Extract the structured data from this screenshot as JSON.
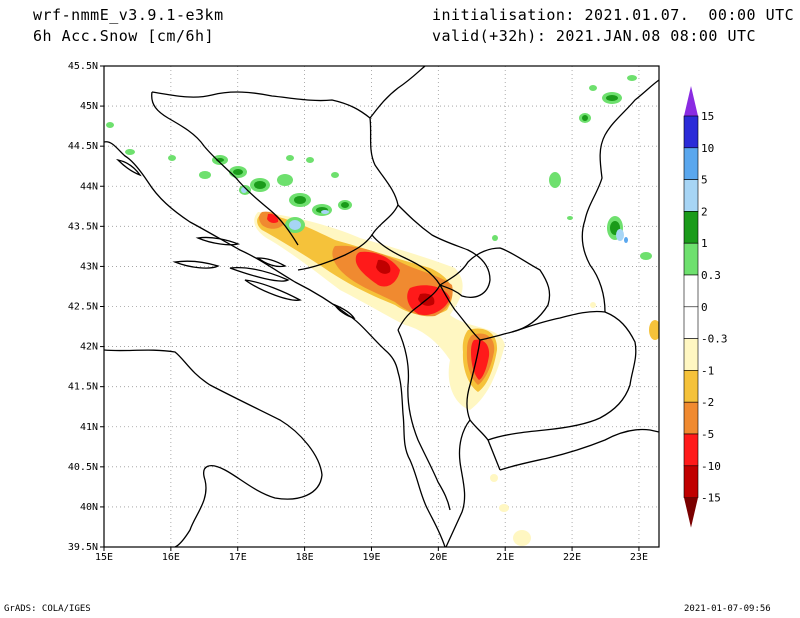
{
  "header": {
    "model": "wrf-nmmE_v3.9.1-e3km",
    "field": "6h Acc.Snow [cm/6h]",
    "initialisation": "initialisation: 2021.01.07.  00:00 UTC",
    "valid": "valid(+32h): 2021.JAN.08 08:00 UTC"
  },
  "footer": {
    "left": "GrADS: COLA/IGES",
    "right": "2021-01-07-09:56"
  },
  "map": {
    "lat_labels": [
      "45.5N",
      "45N",
      "44.5N",
      "44N",
      "43.5N",
      "43N",
      "42.5N",
      "42N",
      "41.5N",
      "41N",
      "40.5N",
      "40N",
      "39.5N"
    ],
    "lon_labels": [
      "15E",
      "16E",
      "17E",
      "18E",
      "19E",
      "20E",
      "21E",
      "22E",
      "23E"
    ],
    "lat_range": [
      39.5,
      45.5
    ],
    "lon_range": [
      15,
      23.3
    ],
    "grid": "dotted"
  },
  "colorbar": {
    "labels": [
      "15",
      "10",
      "5",
      "2",
      "1",
      "0.3",
      "0",
      "-0.3",
      "-1",
      "-2",
      "-5",
      "-10",
      "-15"
    ],
    "colors": [
      "#2b2bd8",
      "#5aa7ee",
      "#a7d5f5",
      "#1a9b1a",
      "#6ee06e",
      "#ffffff",
      "#ffffff",
      "#fff7c2",
      "#f5c23a",
      "#f08a30",
      "#ff1a1a",
      "#c00000"
    ],
    "top_arrow_color": "#8a2be2",
    "bottom_arrow_color": "#7a0000"
  }
}
